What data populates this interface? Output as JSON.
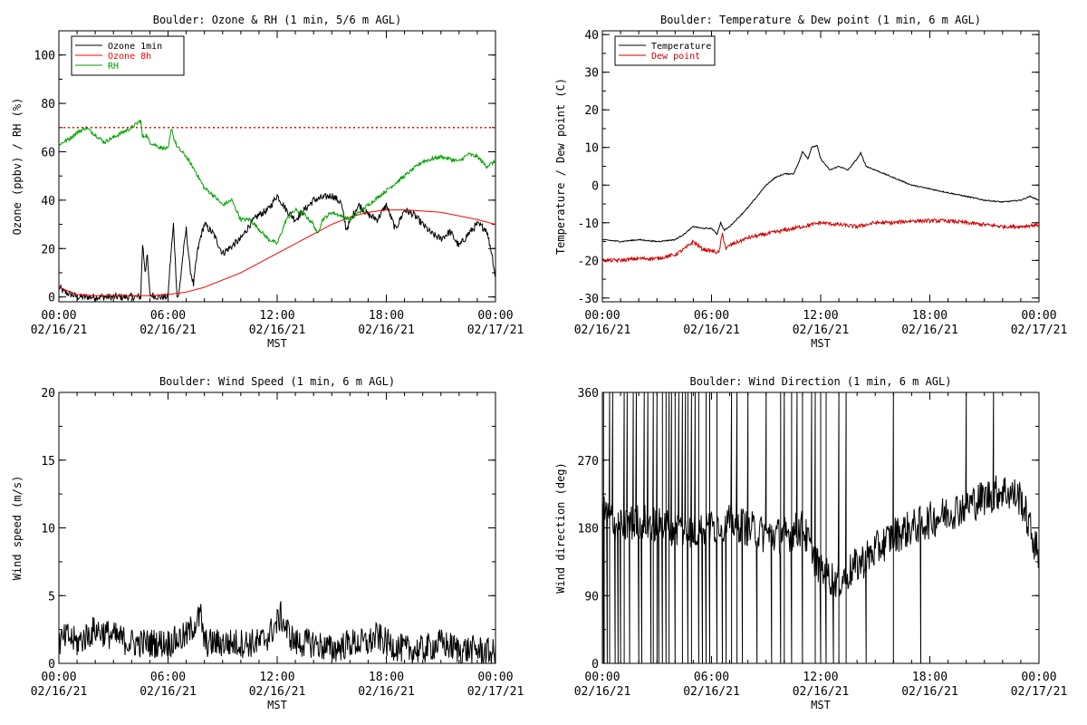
{
  "chart_data": [
    {
      "type": "line",
      "title": "Boulder: Ozone & RH (1 min, 5/6 m AGL)",
      "xlabel": "MST",
      "ylabel": "Ozone (ppbv) / RH (%)",
      "ylim": [
        -2,
        110
      ],
      "yticks": [
        0,
        20,
        40,
        60,
        80,
        100
      ],
      "xticks": [
        {
          "h": 0,
          "time": "00:00",
          "date": "02/16/21"
        },
        {
          "h": 6,
          "time": "06:00",
          "date": "02/16/21"
        },
        {
          "h": 12,
          "time": "12:00",
          "date": "02/16/21"
        },
        {
          "h": 18,
          "time": "18:00",
          "date": "02/16/21"
        },
        {
          "h": 24,
          "time": "00:00",
          "date": "02/17/21"
        }
      ],
      "xlim": [
        0,
        24
      ],
      "grid": false,
      "legend": "top-left",
      "reference_lines": [
        {
          "y": 70,
          "color": "#ff0000",
          "style": "dotted"
        }
      ],
      "series": [
        {
          "name": "Ozone 1min",
          "color": "#000000",
          "noise": 1.5,
          "x": [
            0,
            0.3,
            0.7,
            1,
            2,
            3,
            4,
            4.5,
            4.6,
            4.75,
            4.85,
            5,
            5.5,
            6,
            6.1,
            6.3,
            6.5,
            6.6,
            6.8,
            7,
            7.2,
            7.4,
            7.6,
            7.8,
            8,
            8.5,
            9,
            10,
            10.5,
            11,
            11.5,
            12,
            12.5,
            13,
            13.5,
            14,
            14.5,
            15,
            15.5,
            15.8,
            16,
            16.3,
            16.5,
            17,
            17.5,
            18,
            18.5,
            19,
            19.5,
            20,
            20.5,
            21,
            21.5,
            22,
            22.5,
            23,
            23.5,
            23.8,
            24
          ],
          "y": [
            4,
            2,
            1,
            0,
            0,
            0,
            0,
            0,
            22,
            10,
            18,
            1,
            0,
            0,
            12,
            30,
            0,
            1,
            16,
            28,
            12,
            5,
            18,
            25,
            30,
            26,
            18,
            24,
            30,
            34,
            36,
            42,
            36,
            32,
            36,
            40,
            41,
            42,
            39,
            28,
            31,
            36,
            38,
            34,
            32,
            38,
            28,
            36,
            34,
            30,
            26,
            24,
            27,
            21,
            26,
            30,
            28,
            18,
            8
          ]
        },
        {
          "name": "Ozone 8h",
          "color": "#ff0000",
          "noise": 0,
          "x": [
            0,
            1,
            2,
            3,
            4,
            5,
            6,
            7,
            8,
            9,
            10,
            11,
            12,
            13,
            14,
            15,
            16,
            17,
            18,
            19,
            20,
            21,
            22,
            23,
            24
          ],
          "y": [
            4,
            1,
            0.5,
            0.5,
            0.5,
            0.5,
            1,
            2,
            4,
            7,
            10,
            14,
            18,
            22,
            26,
            30,
            33,
            35,
            36,
            36,
            35.5,
            35,
            33.5,
            32,
            30
          ]
        },
        {
          "name": "RH",
          "color": "#00a000",
          "noise": 0.8,
          "x": [
            0,
            0.5,
            1,
            1.5,
            2,
            2.5,
            3,
            3.5,
            4,
            4.5,
            4.6,
            4.8,
            5,
            5.5,
            6,
            6.2,
            6.3,
            6.5,
            7,
            7.5,
            8,
            8.5,
            9,
            9.5,
            10,
            10.5,
            11,
            11.5,
            12,
            12.5,
            13,
            13.5,
            14,
            14.2,
            14.5,
            15,
            16,
            16.5,
            17,
            18,
            19,
            20,
            21,
            22,
            22.5,
            23,
            23.5,
            24
          ],
          "y": [
            63,
            65,
            68,
            70,
            67,
            64,
            66,
            68,
            70,
            73,
            66,
            67,
            64,
            62,
            61,
            70,
            66,
            62,
            58,
            52,
            45,
            42,
            38,
            40,
            32,
            32,
            28,
            24,
            22,
            32,
            36,
            34,
            30,
            26,
            32,
            35,
            32,
            35,
            38,
            44,
            50,
            56,
            58,
            56,
            59,
            58,
            54,
            56
          ]
        }
      ]
    },
    {
      "type": "line",
      "title": "Boulder: Temperature & Dew point (1 min, 6 m AGL)",
      "xlabel": "MST",
      "ylabel": "Temperature / Dew point (C)",
      "ylim": [
        -31,
        41
      ],
      "yticks": [
        -30,
        -20,
        -10,
        0,
        10,
        20,
        30,
        40
      ],
      "xticks": [
        {
          "h": 0,
          "time": "00:00",
          "date": "02/16/21"
        },
        {
          "h": 6,
          "time": "06:00",
          "date": "02/16/21"
        },
        {
          "h": 12,
          "time": "12:00",
          "date": "02/16/21"
        },
        {
          "h": 18,
          "time": "18:00",
          "date": "02/16/21"
        },
        {
          "h": 24,
          "time": "00:00",
          "date": "02/17/21"
        }
      ],
      "xlim": [
        0,
        24
      ],
      "grid": false,
      "legend": "top-left",
      "series": [
        {
          "name": "Temperature",
          "color": "#000000",
          "noise": 0.15,
          "x": [
            0,
            1,
            2,
            3,
            4,
            4.5,
            5,
            5.5,
            6,
            6.3,
            6.5,
            6.7,
            7,
            8,
            9,
            9.5,
            10,
            10.5,
            10.8,
            11,
            11.3,
            11.5,
            11.8,
            12,
            12.5,
            13,
            13.5,
            14,
            14.2,
            14.5,
            15,
            16,
            17,
            18,
            19,
            20,
            21,
            22,
            23,
            23.5,
            24
          ],
          "y": [
            -14.5,
            -15,
            -14.5,
            -15,
            -14.5,
            -13,
            -11,
            -11.5,
            -11.5,
            -13,
            -10,
            -12,
            -11,
            -6,
            0,
            2,
            3,
            3,
            6,
            9,
            7,
            10,
            10.5,
            7,
            4,
            5,
            4,
            7,
            8.5,
            5,
            4,
            2,
            0,
            -1,
            -2,
            -3,
            -4,
            -4.5,
            -4,
            -3,
            -4
          ]
        },
        {
          "name": "Dew point",
          "color": "#d00000",
          "noise": 0.5,
          "x": [
            0,
            1,
            2,
            3,
            4,
            4.5,
            5,
            5.5,
            6,
            6.4,
            6.6,
            6.8,
            7,
            8,
            9,
            10,
            11,
            12,
            13,
            14,
            15,
            16,
            17,
            18,
            19,
            20,
            21,
            22,
            23,
            24
          ],
          "y": [
            -20,
            -20,
            -19.5,
            -19.5,
            -18.5,
            -17,
            -15,
            -17,
            -17.5,
            -18,
            -13,
            -17,
            -16,
            -14,
            -13,
            -12,
            -11,
            -10,
            -10.5,
            -11,
            -10,
            -10,
            -9.5,
            -9.5,
            -9.5,
            -10,
            -10.5,
            -11,
            -11,
            -10.5
          ]
        }
      ]
    },
    {
      "type": "line",
      "title": "Boulder: Wind Speed (1 min, 6 m AGL)",
      "xlabel": "MST",
      "ylabel": "Wind speed (m/s)",
      "ylim": [
        0,
        20
      ],
      "yticks": [
        0,
        5,
        10,
        15,
        20
      ],
      "xticks": [
        {
          "h": 0,
          "time": "00:00",
          "date": "02/16/21"
        },
        {
          "h": 6,
          "time": "06:00",
          "date": "02/16/21"
        },
        {
          "h": 12,
          "time": "12:00",
          "date": "02/16/21"
        },
        {
          "h": 18,
          "time": "18:00",
          "date": "02/16/21"
        },
        {
          "h": 24,
          "time": "00:00",
          "date": "02/17/21"
        }
      ],
      "xlim": [
        0,
        24
      ],
      "grid": false,
      "series": [
        {
          "color": "#000000",
          "noise": 1.1,
          "x": [
            0,
            0.5,
            1,
            1.5,
            2,
            3,
            4,
            5,
            6,
            7,
            7.5,
            7.8,
            8,
            9,
            10,
            11,
            11.5,
            12,
            12.2,
            12.5,
            13,
            14,
            15,
            16,
            17,
            17.5,
            18,
            19,
            20,
            21,
            22,
            23,
            24
          ],
          "y": [
            1.5,
            2,
            1.5,
            2,
            2.5,
            2,
            1.5,
            1.5,
            1.5,
            2,
            3,
            3.5,
            1.5,
            1.5,
            1.5,
            1.5,
            2,
            3,
            3.5,
            2.5,
            1.5,
            1.5,
            1,
            1.5,
            1.5,
            2,
            1.5,
            1,
            1,
            1.5,
            1,
            1,
            0.7
          ]
        }
      ]
    },
    {
      "type": "line",
      "title": "Boulder: Wind Direction (1 min, 6 m AGL)",
      "xlabel": "MST",
      "ylabel": "Wind direction (deg)",
      "ylim": [
        0,
        360
      ],
      "yticks": [
        0,
        90,
        180,
        270,
        360
      ],
      "xticks": [
        {
          "h": 0,
          "time": "00:00",
          "date": "02/16/21"
        },
        {
          "h": 6,
          "time": "06:00",
          "date": "02/16/21"
        },
        {
          "h": 12,
          "time": "12:00",
          "date": "02/16/21"
        },
        {
          "h": 18,
          "time": "18:00",
          "date": "02/16/21"
        },
        {
          "h": 24,
          "time": "00:00",
          "date": "02/17/21"
        }
      ],
      "xlim": [
        0,
        24
      ],
      "grid": false,
      "series": [
        {
          "color": "#000000",
          "noise": 25,
          "x": [
            0,
            1,
            2,
            3,
            4,
            5,
            6,
            7,
            8,
            9,
            10,
            11,
            12,
            13,
            14,
            15,
            16,
            17,
            18,
            19,
            20,
            21,
            22,
            23,
            24
          ],
          "y": [
            200,
            180,
            190,
            185,
            180,
            175,
            180,
            190,
            180,
            170,
            170,
            180,
            120,
            110,
            130,
            150,
            170,
            180,
            190,
            200,
            210,
            220,
            230,
            220,
            140
          ],
          "spikes": [
            0.05,
            0.1,
            0.25,
            0.4,
            0.55,
            0.7,
            0.85,
            1.0,
            1.2,
            1.35,
            1.5,
            1.7,
            1.85,
            2.0,
            2.15,
            2.3,
            2.5,
            2.65,
            2.8,
            3.0,
            3.1,
            3.3,
            3.5,
            3.65,
            3.8,
            4.0,
            4.2,
            4.4,
            4.55,
            4.7,
            4.9,
            5.1,
            5.3,
            5.5,
            5.7,
            5.9,
            6.3,
            6.6,
            6.8,
            7.1,
            7.4,
            7.7,
            8.0,
            8.5,
            9.0,
            9.3,
            9.8,
            10.0,
            10.4,
            10.7,
            11.0,
            11.5,
            11.7,
            12.0,
            12.3,
            12.7,
            13.0,
            13.4,
            14.5,
            16.0,
            17.5,
            20.0,
            21.5
          ]
        }
      ]
    }
  ]
}
